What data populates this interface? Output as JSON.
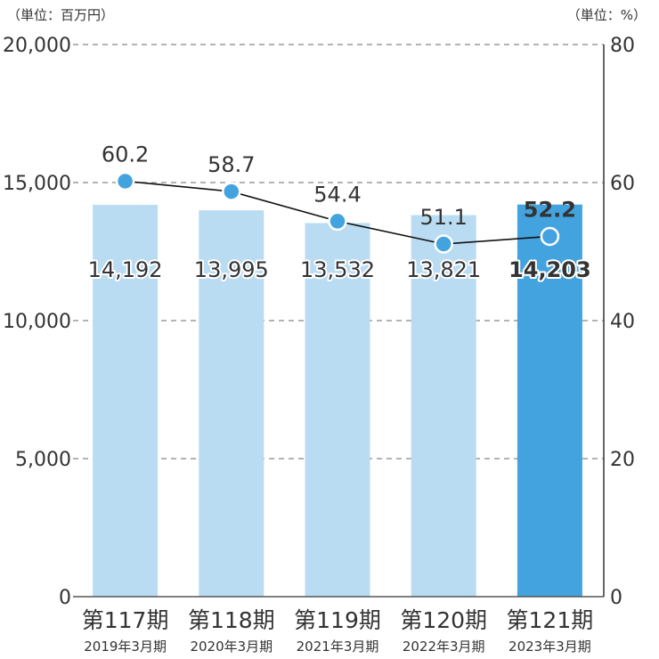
{
  "chart_data": {
    "type": "bar",
    "left_unit": "（単位：百万円）",
    "right_unit": "（単位：%）",
    "categories": [
      "第117期",
      "第118期",
      "第119期",
      "第120期",
      "第121期"
    ],
    "dates": [
      "2019年3月期",
      "2020年3月期",
      "2021年3月期",
      "2022年3月期",
      "2023年3月期"
    ],
    "y_left": {
      "min": 0,
      "max": 20000,
      "ticks": [
        "0",
        "5,000",
        "10,000",
        "15,000",
        "20,000"
      ]
    },
    "y_right": {
      "min": 0,
      "max": 80,
      "ticks": [
        "0",
        "20",
        "40",
        "60",
        "80"
      ]
    },
    "grid": true,
    "highlight_index": 4,
    "series": [
      {
        "type": "bar",
        "axis": "left",
        "values": [
          14192,
          13995,
          13532,
          13821,
          14203
        ],
        "labels": [
          "14,192",
          "13,995",
          "13,532",
          "13,821",
          "14,203"
        ],
        "color": "#b9dcf3",
        "highlight_color": "#43a3df"
      },
      {
        "type": "line",
        "axis": "right",
        "values": [
          60.2,
          58.7,
          54.4,
          51.1,
          52.2
        ],
        "labels": [
          "60.2",
          "58.7",
          "54.4",
          "51.1",
          "52.2"
        ],
        "marker_color": "#43a3df",
        "line_color": "#111111"
      }
    ]
  }
}
